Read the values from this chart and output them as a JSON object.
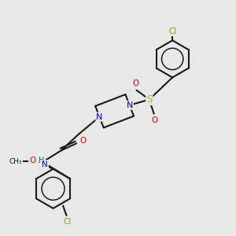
{
  "background_color": "#e8e8e8",
  "bond_color": "#1a1a1a",
  "atom_colors": {
    "N": "#0000ee",
    "O": "#ee0000",
    "Cl": "#66bb00",
    "S": "#ccaa00",
    "H": "#007070",
    "C": "#1a1a1a"
  },
  "figsize": [
    3.0,
    3.0
  ],
  "dpi": 100
}
